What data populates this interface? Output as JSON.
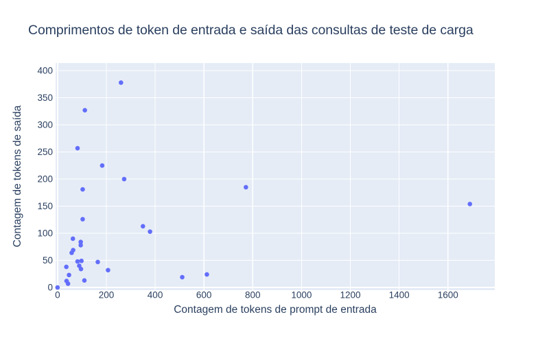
{
  "chart_data": {
    "type": "scatter",
    "title": "Comprimentos de token de entrada e saída das consultas de teste de carga",
    "xlabel": "Contagem de tokens de prompt de entrada",
    "ylabel": "Contagem de tokens de saída",
    "x": [
      260,
      112,
      82,
      183,
      273,
      103,
      772,
      1690,
      103,
      350,
      379,
      63,
      95,
      95,
      58,
      64,
      82,
      98,
      89,
      96,
      165,
      207,
      36,
      47,
      110,
      37,
      43,
      511,
      612,
      0
    ],
    "y": [
      378,
      327,
      257,
      225,
      200,
      181,
      185,
      154,
      126,
      113,
      103,
      90,
      84,
      78,
      64,
      69,
      48,
      49,
      40,
      34,
      47,
      32,
      38,
      23,
      13,
      12,
      7,
      19,
      24,
      0
    ],
    "x_ticks": [
      0,
      200,
      400,
      600,
      800,
      1000,
      1200,
      1400,
      1600
    ],
    "y_ticks": [
      0,
      50,
      100,
      150,
      200,
      250,
      300,
      350,
      400
    ],
    "x_range": [
      -8,
      1792
    ],
    "y_range": [
      -5,
      414
    ],
    "grid": true,
    "legend": false,
    "marker_size_px": 6.6,
    "colors": {
      "marker": "#636efa",
      "plot_bg": "#e5ecf6",
      "grid": "#ffffff",
      "text": "#2a3f5f",
      "paper_bg": "#ffffff"
    }
  }
}
